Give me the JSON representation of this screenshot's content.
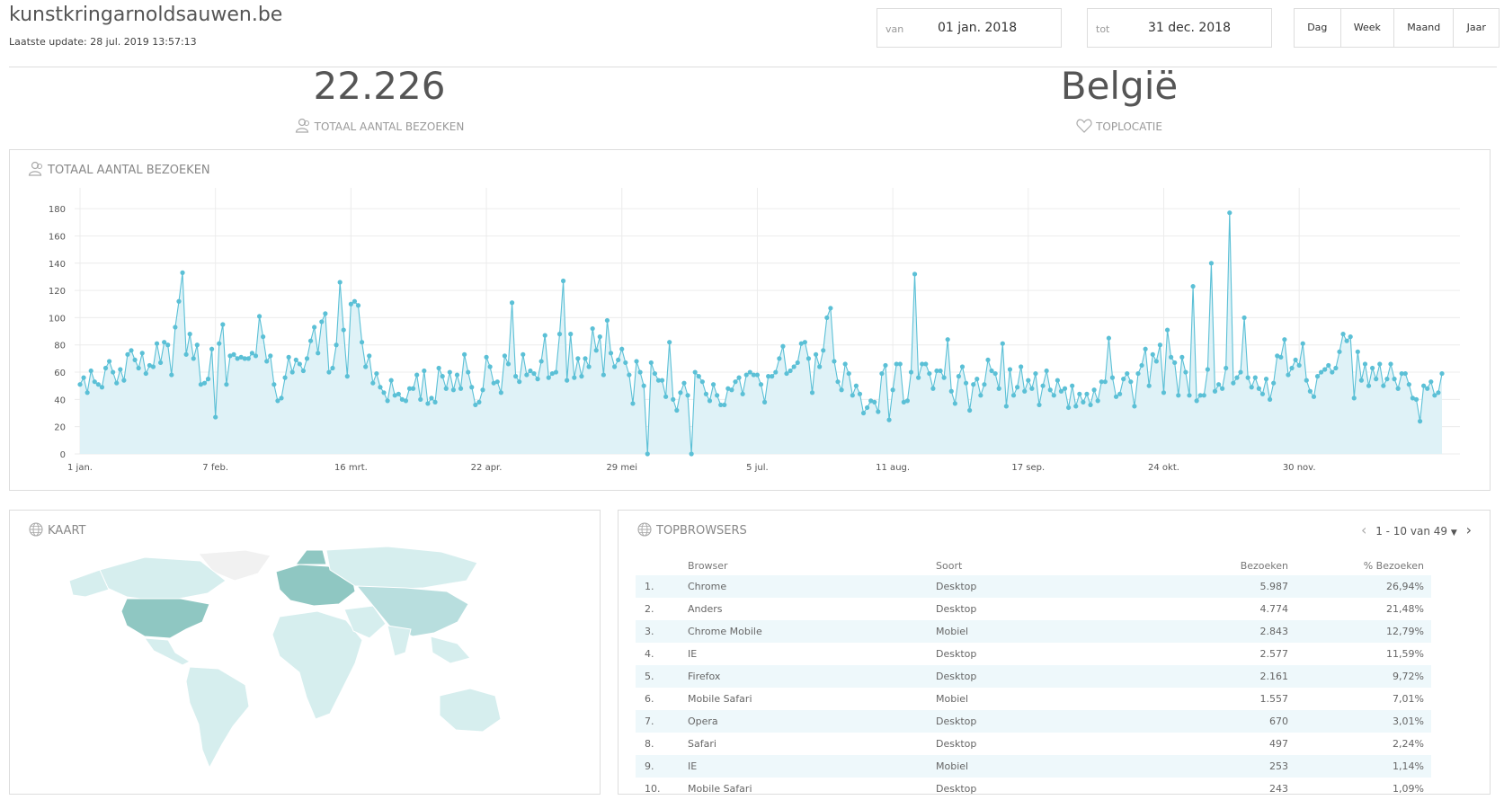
{
  "header": {
    "site_title": "kunstkringarnoldsauwen.be",
    "last_update": "Laatste update: 28 jul. 2019 13:57:13",
    "from_label": "van",
    "from_value": "01 jan. 2018",
    "to_label": "tot",
    "to_value": "31 dec. 2018",
    "ranges": [
      "Dag",
      "Week",
      "Maand",
      "Jaar"
    ]
  },
  "kpis": {
    "visits_value": "22.226",
    "visits_label": "TOTAAL AANTAL BEZOEKEN",
    "location_value": "België",
    "location_label": "TOPLOCATIE"
  },
  "visits_panel": {
    "title": "TOTAAL AANTAL BEZOEKEN"
  },
  "map_panel": {
    "title": "KAART"
  },
  "browsers_panel": {
    "title": "TOPBROWSERS",
    "pager": "1 - 10 van 49",
    "columns": [
      "Browser",
      "Soort",
      "Bezoeken",
      "% Bezoeken"
    ],
    "rows": [
      [
        "1.",
        "Chrome",
        "Desktop",
        "5.987",
        "26,94%"
      ],
      [
        "2.",
        "Anders",
        "Desktop",
        "4.774",
        "21,48%"
      ],
      [
        "3.",
        "Chrome Mobile",
        "Mobiel",
        "2.843",
        "12,79%"
      ],
      [
        "4.",
        "IE",
        "Desktop",
        "2.577",
        "11,59%"
      ],
      [
        "5.",
        "Firefox",
        "Desktop",
        "2.161",
        "9,72%"
      ],
      [
        "6.",
        "Mobile Safari",
        "Mobiel",
        "1.557",
        "7,01%"
      ],
      [
        "7.",
        "Opera",
        "Desktop",
        "670",
        "3,01%"
      ],
      [
        "8.",
        "Safari",
        "Desktop",
        "497",
        "2,24%"
      ],
      [
        "9.",
        "IE",
        "Mobiel",
        "253",
        "1,14%"
      ],
      [
        "10.",
        "Mobile Safari",
        "Desktop",
        "243",
        "1,09%"
      ]
    ]
  },
  "colors": {
    "line": "#5bc0d6",
    "fill": "#dff2f7",
    "map_base": "#d6eeee",
    "map_mid": "#b8dede",
    "map_dark": "#8fc7c2"
  },
  "chart_data": {
    "type": "area",
    "xlabel": "",
    "ylabel": "",
    "ylim": [
      0,
      190
    ],
    "yticks": [
      0,
      20,
      40,
      60,
      80,
      100,
      120,
      140,
      160,
      180
    ],
    "xtick_labels": [
      "1 jan.",
      "7 feb.",
      "16 mrt.",
      "22 apr.",
      "29 mei",
      "5 jul.",
      "11 aug.",
      "17 sep.",
      "24 okt.",
      "30 nov."
    ],
    "xtick_days": [
      0,
      37,
      74,
      111,
      148,
      185,
      222,
      259,
      296,
      333
    ],
    "series": [
      {
        "values": [
          51,
          56,
          45,
          61,
          53,
          51,
          49,
          63,
          68,
          60,
          52,
          62,
          54,
          73,
          76,
          69,
          63,
          74,
          59,
          65,
          64,
          81,
          67,
          82,
          80,
          58,
          93,
          112,
          133,
          73,
          88,
          70,
          80,
          51,
          52,
          55,
          77,
          27,
          81,
          95,
          51,
          72,
          73,
          70,
          71,
          70,
          70,
          74,
          72,
          101,
          86,
          68,
          72,
          51,
          39,
          41,
          56,
          71,
          60,
          69,
          66,
          61,
          70,
          83,
          93,
          74,
          97,
          103,
          60,
          63,
          80,
          126,
          91,
          57,
          110,
          112,
          109,
          82,
          64,
          72,
          52,
          59,
          49,
          45,
          39,
          54,
          43,
          44,
          40,
          39,
          48,
          48,
          58,
          40,
          61,
          37,
          41,
          38,
          63,
          57,
          48,
          60,
          47,
          58,
          48,
          73,
          60,
          49,
          36,
          38,
          47,
          71,
          64,
          52,
          53,
          45,
          72,
          66,
          111,
          57,
          53,
          73,
          58,
          61,
          59,
          55,
          68,
          87,
          56,
          59,
          60,
          88,
          127,
          54,
          88,
          56,
          70,
          57,
          70,
          64,
          92,
          76,
          86,
          58,
          98,
          74,
          64,
          69,
          77,
          67,
          58,
          37,
          68,
          60,
          50,
          0,
          67,
          59,
          54,
          54,
          42,
          82,
          40,
          32,
          45,
          52,
          43,
          0,
          60,
          57,
          53,
          44,
          39,
          51,
          43,
          36,
          36,
          48,
          47,
          53,
          56,
          44,
          58,
          60,
          58,
          58,
          51,
          38,
          57,
          57,
          60,
          70,
          79,
          59,
          61,
          64,
          67,
          81,
          82,
          70,
          45,
          73,
          64,
          76,
          100,
          107,
          68,
          53,
          47,
          66,
          59,
          43,
          50,
          44,
          30,
          34,
          39,
          38,
          31,
          59,
          65,
          25,
          47,
          66,
          66,
          38,
          39,
          60,
          132,
          56,
          66,
          66,
          59,
          48,
          61,
          61,
          56,
          84,
          46,
          37,
          57,
          64,
          52,
          32,
          51,
          55,
          43,
          51,
          69,
          61,
          59,
          48,
          81,
          35,
          62,
          43,
          49,
          64,
          46,
          54,
          48,
          59,
          36,
          50,
          61,
          47,
          43,
          54,
          46,
          48,
          34,
          50,
          35,
          44,
          38,
          44,
          36,
          47,
          39,
          53,
          53,
          85,
          56,
          42,
          44,
          55,
          59,
          53,
          35,
          59,
          65,
          77,
          50,
          73,
          68,
          80,
          45,
          91,
          71,
          67,
          43,
          71,
          60,
          43,
          123,
          39,
          43,
          43,
          62,
          140,
          46,
          51,
          48,
          63,
          177,
          52,
          56,
          60,
          100,
          56,
          49,
          56,
          48,
          44,
          55,
          40,
          52,
          72,
          71,
          84,
          58,
          63,
          69,
          65,
          81,
          54,
          46,
          42,
          57,
          60,
          62,
          65,
          60,
          63,
          75,
          88,
          83,
          86,
          41,
          75,
          54,
          66,
          50,
          63,
          55,
          66,
          50,
          55,
          66,
          55,
          48,
          59,
          59,
          51,
          41,
          40,
          24,
          50,
          48,
          53,
          43,
          45,
          59
        ]
      }
    ]
  },
  "map_data": {
    "type": "choropleth",
    "title": "KAART",
    "darkest_region": "Europe"
  }
}
